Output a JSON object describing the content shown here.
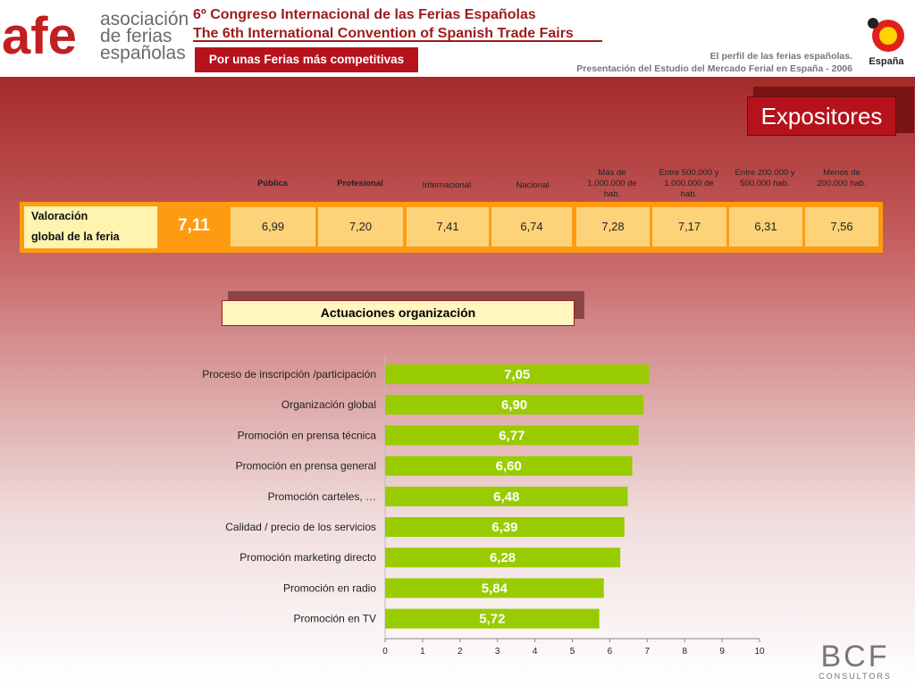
{
  "header": {
    "logo_mark": "afe",
    "logo_lines": [
      "asociación",
      "de ferias",
      "españolas"
    ],
    "congress_es": "6º Congreso Internacional de las Ferias Españolas",
    "congress_en": "The 6th International Convention of Spanish Trade Fairs",
    "slogan": "Por unas Ferias más competitivas",
    "subtitle1": "El perfil de las ferias españolas.",
    "subtitle2": "Presentación del Estudio del Mercado Ferial en España - 2006",
    "spain_logo_text": "España"
  },
  "section_title": "Expositores",
  "summary_table": {
    "label_line1": "Valoración",
    "label_line2": "global de la feria",
    "global_value": "7,11",
    "columns": [
      {
        "header": "Pública",
        "value": "6,99",
        "bold": true
      },
      {
        "header": "Profesional",
        "value": "7,20",
        "bold": true
      },
      {
        "header": "Internacional",
        "value": "7,41",
        "bold": false
      },
      {
        "header": "Nacional",
        "value": "6,74",
        "bold": false
      },
      {
        "header": "Más de 1.000.000 de hab.",
        "value": "7,28",
        "bold": false
      },
      {
        "header": "Entre 500.000 y 1.000.000 de hab.",
        "value": "7,17",
        "bold": false
      },
      {
        "header": "Entre 200.000 y 500.000 hab.",
        "value": "6,31",
        "bold": false
      },
      {
        "header": "Menos de 200.000 hab.",
        "value": "7,56",
        "bold": false
      }
    ]
  },
  "chart_title": "Actuaciones organización",
  "chart_data": {
    "type": "bar",
    "orientation": "horizontal",
    "categories": [
      "Proceso de inscripción /participación",
      "Organización global",
      "Promoción en prensa técnica",
      "Promoción en prensa general",
      "Promoción carteles, …",
      "Calidad / precio de los servicios",
      "Promoción marketing directo",
      "Promoción en radio",
      "Promoción en TV"
    ],
    "values": [
      7.05,
      6.9,
      6.77,
      6.6,
      6.48,
      6.39,
      6.28,
      5.84,
      5.72
    ],
    "labels": [
      "7,05",
      "6,90",
      "6,77",
      "6,60",
      "6,48",
      "6,39",
      "6,28",
      "5,84",
      "5,72"
    ],
    "xlim": [
      0,
      10
    ],
    "xticks": [
      "0",
      "1",
      "2",
      "3",
      "4",
      "5",
      "6",
      "7",
      "8",
      "9",
      "10"
    ],
    "bar_color": "#99cc00",
    "grid": false
  },
  "footer": {
    "logo_main": "BCF",
    "logo_sub": "CONSULTORS"
  },
  "colors": {
    "brand_red": "#b5121b",
    "orange": "#ff9b10",
    "cell": "#fdd37a",
    "bar": "#99cc00"
  }
}
